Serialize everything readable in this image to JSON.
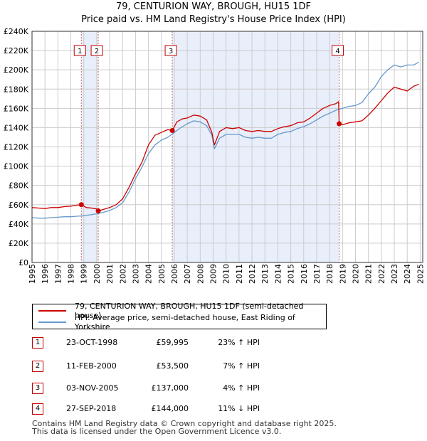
{
  "chart_data": {
    "type": "line",
    "title": "79, CENTURION WAY, BROUGH, HU15 1DF",
    "subtitle": "Price paid vs. HM Land Registry's House Price Index (HPI)",
    "xlim": [
      1995,
      2025.2
    ],
    "ylim": [
      0,
      240000
    ],
    "x_ticks": [
      "1995",
      "1996",
      "1997",
      "1998",
      "1999",
      "2000",
      "2001",
      "2002",
      "2003",
      "2004",
      "2005",
      "2006",
      "2007",
      "2008",
      "2009",
      "2010",
      "2011",
      "2012",
      "2013",
      "2014",
      "2015",
      "2016",
      "2017",
      "2018",
      "2019",
      "2020",
      "2021",
      "2022",
      "2023",
      "2024",
      "2025"
    ],
    "y_ticks": [
      "£0",
      "£20K",
      "£40K",
      "£60K",
      "£80K",
      "£100K",
      "£120K",
      "£140K",
      "£160K",
      "£180K",
      "£200K",
      "£220K",
      "£240K"
    ],
    "grid": true,
    "shaded_ranges": [
      [
        1998.81,
        2000.12
      ],
      [
        2005.84,
        2018.74
      ]
    ],
    "series": [
      {
        "name": "79, CENTURION WAY, BROUGH, HU15 1DF (semi-detached house)",
        "color": "#cc0000",
        "x": [
          1995.0,
          1995.5,
          1996.0,
          1996.5,
          1997.0,
          1997.5,
          1998.0,
          1998.5,
          1998.81,
          1999.2,
          1999.6,
          2000.0,
          2000.12,
          2000.5,
          2001.0,
          2001.5,
          2002.0,
          2002.5,
          2003.0,
          2003.5,
          2004.0,
          2004.5,
          2005.0,
          2005.5,
          2005.84,
          2006.2,
          2006.6,
          2007.0,
          2007.5,
          2008.0,
          2008.5,
          2008.9,
          2009.1,
          2009.5,
          2010.0,
          2010.5,
          2011.0,
          2011.5,
          2012.0,
          2012.5,
          2013.0,
          2013.5,
          2014.0,
          2014.5,
          2015.0,
          2015.5,
          2016.0,
          2016.5,
          2017.0,
          2017.5,
          2018.0,
          2018.5,
          2018.7,
          2018.74,
          2019.0,
          2019.5,
          2020.0,
          2020.5,
          2021.0,
          2021.5,
          2022.0,
          2022.5,
          2023.0,
          2023.5,
          2024.0,
          2024.5,
          2024.9
        ],
        "values": [
          57000,
          56500,
          56000,
          57000,
          57000,
          58000,
          58500,
          59500,
          59995,
          57000,
          56500,
          55500,
          53500,
          55000,
          57000,
          60000,
          66000,
          78000,
          92000,
          104000,
          122000,
          132000,
          135000,
          138000,
          137000,
          146000,
          149000,
          150000,
          153000,
          152000,
          148000,
          135000,
          122000,
          136000,
          140000,
          139000,
          140000,
          137000,
          136000,
          137000,
          136000,
          136000,
          139000,
          141000,
          142000,
          145000,
          146000,
          150000,
          155000,
          160000,
          163000,
          165000,
          167000,
          144000,
          143000,
          145000,
          146000,
          147000,
          153000,
          160000,
          168000,
          176000,
          182000,
          180000,
          178000,
          183000,
          185000
        ]
      },
      {
        "name": "HPI: Average price, semi-detached house, East Riding of Yorkshire",
        "color": "#6699cc",
        "x": [
          1995.0,
          1995.5,
          1996.0,
          1996.5,
          1997.0,
          1997.5,
          1998.0,
          1998.5,
          1999.0,
          1999.5,
          2000.0,
          2000.5,
          2001.0,
          2001.5,
          2002.0,
          2002.5,
          2003.0,
          2003.5,
          2004.0,
          2004.5,
          2005.0,
          2005.5,
          2006.0,
          2006.5,
          2007.0,
          2007.5,
          2008.0,
          2008.5,
          2008.9,
          2009.1,
          2009.5,
          2010.0,
          2010.5,
          2011.0,
          2011.5,
          2012.0,
          2012.5,
          2013.0,
          2013.5,
          2014.0,
          2014.5,
          2015.0,
          2015.5,
          2016.0,
          2016.5,
          2017.0,
          2017.5,
          2018.0,
          2018.5,
          2019.0,
          2019.5,
          2020.0,
          2020.5,
          2021.0,
          2021.5,
          2022.0,
          2022.5,
          2023.0,
          2023.5,
          2024.0,
          2024.5,
          2024.9
        ],
        "values": [
          46500,
          46000,
          46000,
          46500,
          47000,
          47500,
          47500,
          48000,
          48500,
          49500,
          50500,
          52000,
          54000,
          57000,
          62000,
          73000,
          87000,
          99000,
          113000,
          122000,
          127000,
          130000,
          135000,
          140000,
          144000,
          147000,
          146000,
          142000,
          132000,
          118000,
          129000,
          133000,
          133000,
          133000,
          130000,
          129000,
          130000,
          129000,
          129000,
          133000,
          135000,
          136000,
          139000,
          141000,
          144000,
          148000,
          152000,
          155000,
          158000,
          160000,
          162000,
          163000,
          166000,
          175000,
          182000,
          193000,
          200000,
          205000,
          203000,
          205000,
          205000,
          208000
        ]
      }
    ],
    "sale_points": [
      {
        "label": "1",
        "x": 1998.81,
        "value": 59995
      },
      {
        "label": "2",
        "x": 2000.12,
        "value": 53500
      },
      {
        "label": "3",
        "x": 2005.84,
        "value": 137000
      },
      {
        "label": "4",
        "x": 2018.74,
        "value": 144000
      }
    ]
  },
  "legend": {
    "property": "79, CENTURION WAY, BROUGH, HU15 1DF (semi-detached house)",
    "hpi": "HPI: Average price, semi-detached house, East Riding of Yorkshire"
  },
  "sales": [
    {
      "num": "1",
      "date": "23-OCT-1998",
      "price": "£59,995",
      "hpi": "23% ↑ HPI"
    },
    {
      "num": "2",
      "date": "11-FEB-2000",
      "price": "£53,500",
      "hpi": "7% ↑ HPI"
    },
    {
      "num": "3",
      "date": "03-NOV-2005",
      "price": "£137,000",
      "hpi": "4% ↑ HPI"
    },
    {
      "num": "4",
      "date": "27-SEP-2018",
      "price": "£144,000",
      "hpi": "11% ↓ HPI"
    }
  ],
  "footer": {
    "line1": "Contains HM Land Registry data © Crown copyright and database right 2025.",
    "line2": "This data is licensed under the Open Government Licence v3.0."
  },
  "colors": {
    "property": "#cc0000",
    "hpi": "#6699cc",
    "shade": "#e8eefa",
    "grid": "#cccccc"
  }
}
